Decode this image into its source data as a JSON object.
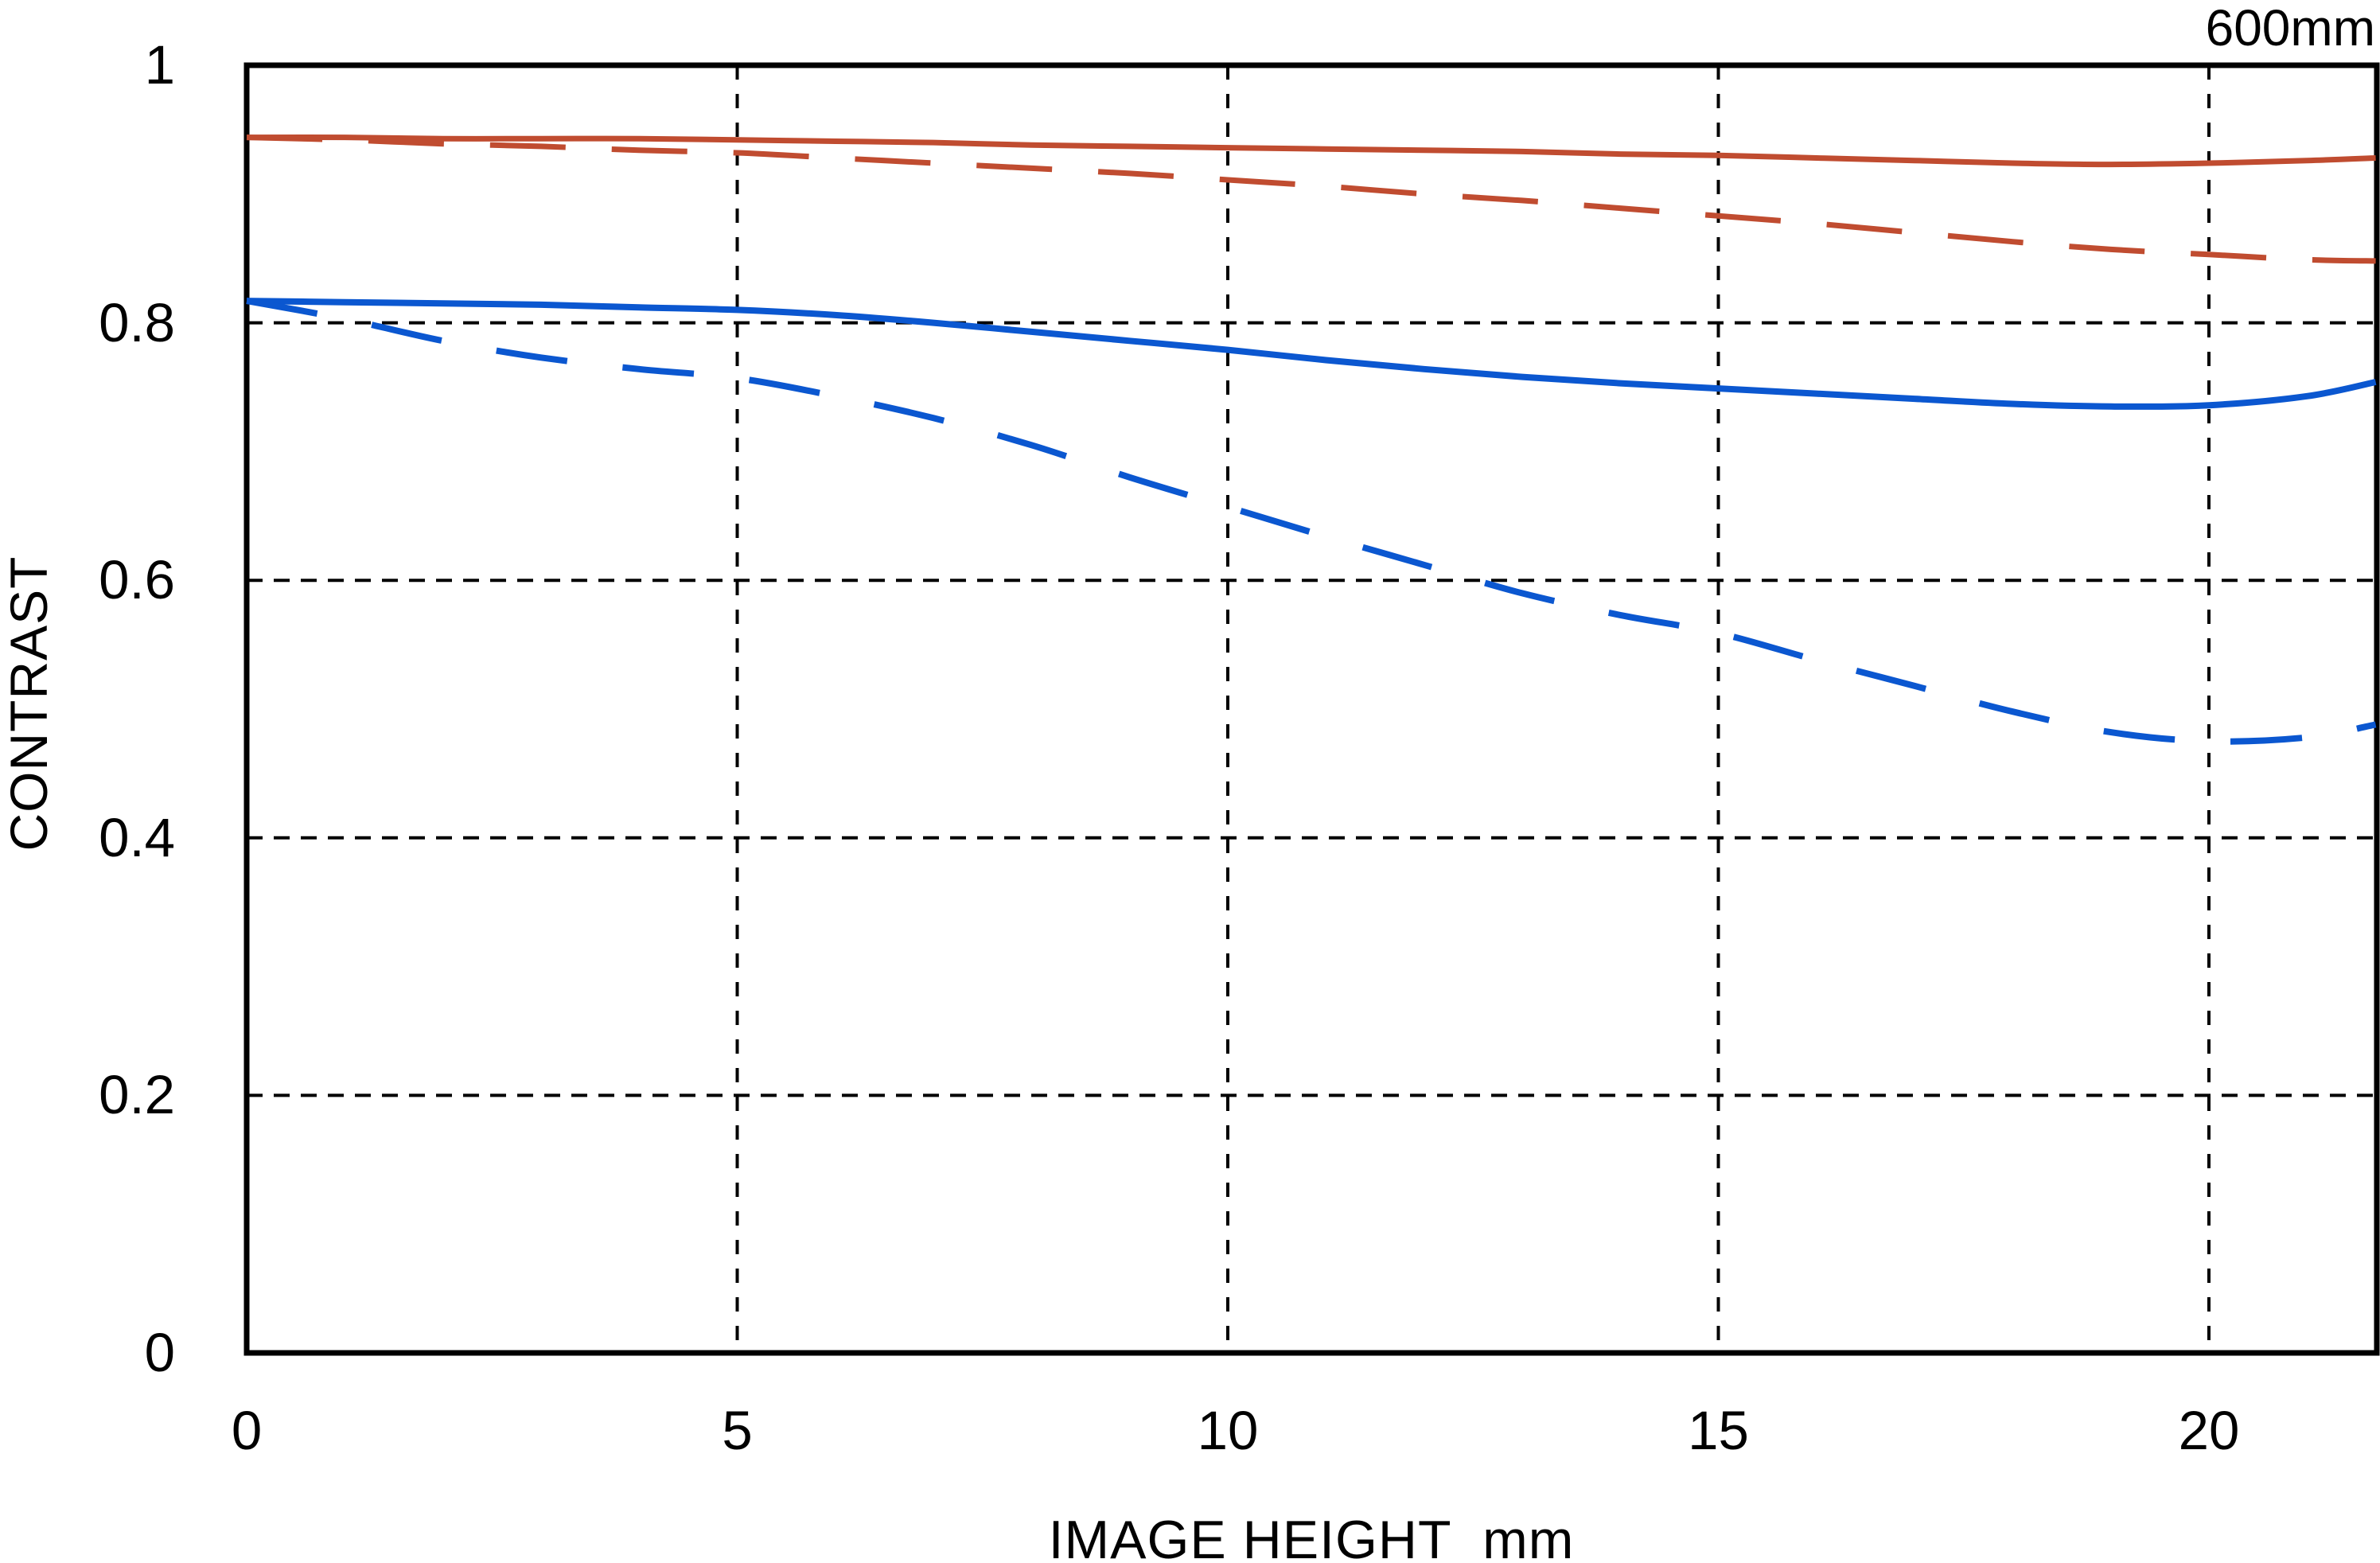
{
  "title": "600mm",
  "axes": {
    "x": {
      "label": "IMAGE HEIGHT  mm",
      "min": 0,
      "max": 21.7,
      "ticks": [
        0,
        5,
        10,
        15,
        20
      ],
      "tick_labels": [
        "0",
        "5",
        "10",
        "15",
        "20"
      ],
      "grid": true
    },
    "y": {
      "label": "CONTRAST",
      "min": 0,
      "max": 1,
      "ticks": [
        0,
        0.2,
        0.4,
        0.6,
        0.8,
        1
      ],
      "tick_labels": [
        "0",
        "0.2",
        "0.4",
        "0.6",
        "0.8",
        "1"
      ],
      "grid": true
    }
  },
  "colors": {
    "red": "#c04c30",
    "blue": "#0b57d0",
    "axis": "#000000",
    "grid": "#000000",
    "background": "#ffffff"
  },
  "chart_data": {
    "type": "line",
    "title": "600mm",
    "xlabel": "IMAGE HEIGHT  mm",
    "ylabel": "CONTRAST",
    "xlim": [
      0,
      21.7
    ],
    "ylim": [
      0,
      1
    ],
    "grid": true,
    "legend": "none",
    "x": [
      0,
      1,
      2,
      3,
      4,
      5,
      6,
      7,
      8,
      9,
      10,
      11,
      12,
      13,
      14,
      15,
      16,
      17,
      18,
      19,
      20,
      21,
      21.7
    ],
    "series": [
      {
        "name": "red-solid",
        "color": "#c04c30",
        "style": "solid",
        "width": 7,
        "values": [
          0.944,
          0.944,
          0.943,
          0.943,
          0.943,
          0.942,
          0.941,
          0.94,
          0.938,
          0.937,
          0.936,
          0.935,
          0.934,
          0.933,
          0.931,
          0.93,
          0.928,
          0.926,
          0.924,
          0.923,
          0.924,
          0.926,
          0.928
        ]
      },
      {
        "name": "red-dashed",
        "color": "#c04c30",
        "style": "dashed",
        "dash": "95 58",
        "width": 7,
        "values": [
          0.944,
          0.942,
          0.939,
          0.937,
          0.934,
          0.932,
          0.928,
          0.924,
          0.92,
          0.916,
          0.911,
          0.906,
          0.9,
          0.895,
          0.889,
          0.883,
          0.877,
          0.87,
          0.863,
          0.857,
          0.853,
          0.849,
          0.848
        ]
      },
      {
        "name": "blue-solid",
        "color": "#0b57d0",
        "style": "solid",
        "width": 8,
        "values": [
          0.817,
          0.816,
          0.815,
          0.814,
          0.812,
          0.81,
          0.806,
          0.8,
          0.793,
          0.786,
          0.779,
          0.771,
          0.764,
          0.758,
          0.753,
          0.749,
          0.745,
          0.741,
          0.737,
          0.735,
          0.736,
          0.743,
          0.754
        ]
      },
      {
        "name": "blue-dashed",
        "color": "#0b57d0",
        "style": "dashed",
        "dash": "90 70",
        "width": 8,
        "values": [
          0.817,
          0.803,
          0.786,
          0.773,
          0.764,
          0.757,
          0.743,
          0.726,
          0.705,
          0.68,
          0.657,
          0.634,
          0.612,
          0.59,
          0.573,
          0.559,
          0.538,
          0.518,
          0.498,
          0.482,
          0.475,
          0.478,
          0.488
        ]
      }
    ]
  }
}
